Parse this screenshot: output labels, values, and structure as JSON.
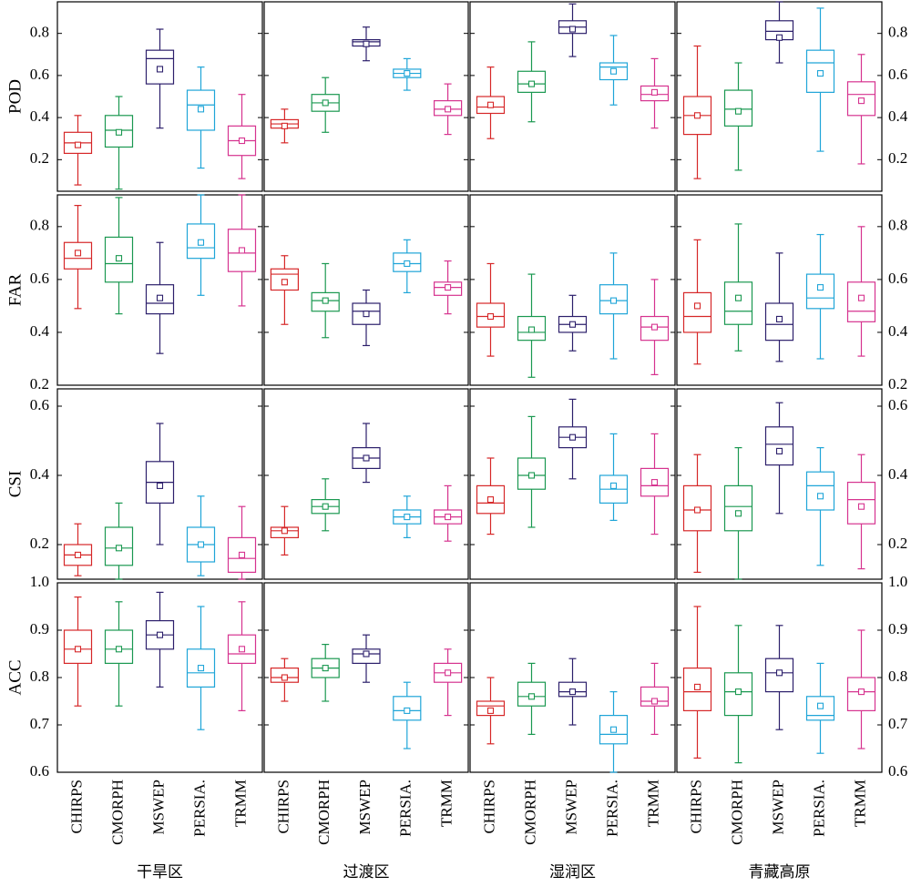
{
  "chart_data": {
    "type": "box",
    "categories": [
      "CHIRPS",
      "CMORPH",
      "MSWEP",
      "PERSIA.",
      "TRMM"
    ],
    "category_colors": [
      "#d62728",
      "#1a9850",
      "#2c1f6b",
      "#1fa5d8",
      "#d6338f"
    ],
    "regions": [
      "干旱区",
      "过渡区",
      "湿润区",
      "青藏高原"
    ],
    "metrics": [
      {
        "name": "POD",
        "ylim": [
          0.05,
          0.95
        ],
        "ticks": [
          "0.2",
          "0.4",
          "0.6",
          "0.8"
        ],
        "panels": [
          {
            "region": "干旱区",
            "boxes": [
              {
                "min": 0.08,
                "q1": 0.23,
                "median": 0.28,
                "q3": 0.33,
                "max": 0.41,
                "mean": 0.27
              },
              {
                "min": 0.06,
                "q1": 0.26,
                "median": 0.34,
                "q3": 0.41,
                "max": 0.5,
                "mean": 0.33
              },
              {
                "min": 0.35,
                "q1": 0.56,
                "median": 0.68,
                "q3": 0.72,
                "max": 0.82,
                "mean": 0.63
              },
              {
                "min": 0.16,
                "q1": 0.34,
                "median": 0.46,
                "q3": 0.53,
                "max": 0.64,
                "mean": 0.44
              },
              {
                "min": 0.11,
                "q1": 0.22,
                "median": 0.29,
                "q3": 0.36,
                "max": 0.51,
                "mean": 0.29
              }
            ]
          },
          {
            "region": "过渡区",
            "boxes": [
              {
                "min": 0.28,
                "q1": 0.35,
                "median": 0.37,
                "q3": 0.39,
                "max": 0.44,
                "mean": 0.36
              },
              {
                "min": 0.33,
                "q1": 0.43,
                "median": 0.47,
                "q3": 0.51,
                "max": 0.59,
                "mean": 0.47
              },
              {
                "min": 0.67,
                "q1": 0.74,
                "median": 0.76,
                "q3": 0.77,
                "max": 0.83,
                "mean": 0.75
              },
              {
                "min": 0.53,
                "q1": 0.59,
                "median": 0.61,
                "q3": 0.63,
                "max": 0.68,
                "mean": 0.61
              },
              {
                "min": 0.32,
                "q1": 0.41,
                "median": 0.44,
                "q3": 0.48,
                "max": 0.56,
                "mean": 0.44
              }
            ]
          },
          {
            "region": "湿润区",
            "boxes": [
              {
                "min": 0.3,
                "q1": 0.42,
                "median": 0.45,
                "q3": 0.5,
                "max": 0.64,
                "mean": 0.46
              },
              {
                "min": 0.38,
                "q1": 0.52,
                "median": 0.56,
                "q3": 0.62,
                "max": 0.76,
                "mean": 0.56
              },
              {
                "min": 0.69,
                "q1": 0.8,
                "median": 0.83,
                "q3": 0.86,
                "max": 0.94,
                "mean": 0.82
              },
              {
                "min": 0.46,
                "q1": 0.58,
                "median": 0.64,
                "q3": 0.66,
                "max": 0.79,
                "mean": 0.62
              },
              {
                "min": 0.35,
                "q1": 0.48,
                "median": 0.51,
                "q3": 0.55,
                "max": 0.68,
                "mean": 0.52
              }
            ]
          },
          {
            "region": "青藏高原",
            "boxes": [
              {
                "min": 0.11,
                "q1": 0.32,
                "median": 0.41,
                "q3": 0.5,
                "max": 0.74,
                "mean": 0.41
              },
              {
                "min": 0.15,
                "q1": 0.36,
                "median": 0.44,
                "q3": 0.53,
                "max": 0.66,
                "mean": 0.43
              },
              {
                "min": 0.66,
                "q1": 0.77,
                "median": 0.81,
                "q3": 0.86,
                "max": 0.95,
                "mean": 0.78
              },
              {
                "min": 0.24,
                "q1": 0.52,
                "median": 0.66,
                "q3": 0.72,
                "max": 0.92,
                "mean": 0.61
              },
              {
                "min": 0.18,
                "q1": 0.41,
                "median": 0.51,
                "q3": 0.57,
                "max": 0.7,
                "mean": 0.48
              }
            ]
          }
        ]
      },
      {
        "name": "FAR",
        "ylim": [
          0.2,
          0.92
        ],
        "ticks": [
          "0.2",
          "0.4",
          "0.6",
          "0.8"
        ],
        "panels": [
          {
            "region": "干旱区",
            "boxes": [
              {
                "min": 0.49,
                "q1": 0.64,
                "median": 0.68,
                "q3": 0.74,
                "max": 0.88,
                "mean": 0.7
              },
              {
                "min": 0.47,
                "q1": 0.59,
                "median": 0.66,
                "q3": 0.76,
                "max": 0.91,
                "mean": 0.68
              },
              {
                "min": 0.32,
                "q1": 0.47,
                "median": 0.51,
                "q3": 0.58,
                "max": 0.74,
                "mean": 0.53
              },
              {
                "min": 0.54,
                "q1": 0.68,
                "median": 0.72,
                "q3": 0.81,
                "max": 0.92,
                "mean": 0.74
              },
              {
                "min": 0.5,
                "q1": 0.63,
                "median": 0.7,
                "q3": 0.79,
                "max": 0.92,
                "mean": 0.71
              }
            ]
          },
          {
            "region": "过渡区",
            "boxes": [
              {
                "min": 0.43,
                "q1": 0.56,
                "median": 0.62,
                "q3": 0.64,
                "max": 0.69,
                "mean": 0.59
              },
              {
                "min": 0.38,
                "q1": 0.48,
                "median": 0.52,
                "q3": 0.55,
                "max": 0.66,
                "mean": 0.52
              },
              {
                "min": 0.35,
                "q1": 0.43,
                "median": 0.48,
                "q3": 0.51,
                "max": 0.56,
                "mean": 0.47
              },
              {
                "min": 0.55,
                "q1": 0.63,
                "median": 0.66,
                "q3": 0.7,
                "max": 0.75,
                "mean": 0.66
              },
              {
                "min": 0.47,
                "q1": 0.54,
                "median": 0.57,
                "q3": 0.59,
                "max": 0.67,
                "mean": 0.57
              }
            ]
          },
          {
            "region": "湿润区",
            "boxes": [
              {
                "min": 0.31,
                "q1": 0.42,
                "median": 0.46,
                "q3": 0.51,
                "max": 0.66,
                "mean": 0.46
              },
              {
                "min": 0.23,
                "q1": 0.37,
                "median": 0.4,
                "q3": 0.46,
                "max": 0.62,
                "mean": 0.41
              },
              {
                "min": 0.33,
                "q1": 0.4,
                "median": 0.43,
                "q3": 0.46,
                "max": 0.54,
                "mean": 0.43
              },
              {
                "min": 0.3,
                "q1": 0.47,
                "median": 0.52,
                "q3": 0.58,
                "max": 0.7,
                "mean": 0.52
              },
              {
                "min": 0.24,
                "q1": 0.37,
                "median": 0.42,
                "q3": 0.46,
                "max": 0.6,
                "mean": 0.42
              }
            ]
          },
          {
            "region": "青藏高原",
            "boxes": [
              {
                "min": 0.28,
                "q1": 0.4,
                "median": 0.46,
                "q3": 0.55,
                "max": 0.75,
                "mean": 0.5
              },
              {
                "min": 0.33,
                "q1": 0.43,
                "median": 0.48,
                "q3": 0.59,
                "max": 0.81,
                "mean": 0.53
              },
              {
                "min": 0.29,
                "q1": 0.37,
                "median": 0.43,
                "q3": 0.51,
                "max": 0.7,
                "mean": 0.45
              },
              {
                "min": 0.3,
                "q1": 0.49,
                "median": 0.53,
                "q3": 0.62,
                "max": 0.77,
                "mean": 0.57
              },
              {
                "min": 0.31,
                "q1": 0.44,
                "median": 0.48,
                "q3": 0.59,
                "max": 0.8,
                "mean": 0.53
              }
            ]
          }
        ]
      },
      {
        "name": "CSI",
        "ylim": [
          0.1,
          0.65
        ],
        "ticks": [
          "0.2",
          "0.4",
          "0.6"
        ],
        "panels": [
          {
            "region": "干旱区",
            "boxes": [
              {
                "min": 0.11,
                "q1": 0.14,
                "median": 0.17,
                "q3": 0.2,
                "max": 0.26,
                "mean": 0.17
              },
              {
                "min": 0.1,
                "q1": 0.14,
                "median": 0.19,
                "q3": 0.25,
                "max": 0.32,
                "mean": 0.19
              },
              {
                "min": 0.2,
                "q1": 0.32,
                "median": 0.38,
                "q3": 0.44,
                "max": 0.55,
                "mean": 0.37
              },
              {
                "min": 0.11,
                "q1": 0.15,
                "median": 0.2,
                "q3": 0.25,
                "max": 0.34,
                "mean": 0.2
              },
              {
                "min": 0.1,
                "q1": 0.12,
                "median": 0.16,
                "q3": 0.22,
                "max": 0.31,
                "mean": 0.17
              }
            ]
          },
          {
            "region": "过渡区",
            "boxes": [
              {
                "min": 0.17,
                "q1": 0.22,
                "median": 0.24,
                "q3": 0.25,
                "max": 0.31,
                "mean": 0.24
              },
              {
                "min": 0.24,
                "q1": 0.29,
                "median": 0.31,
                "q3": 0.33,
                "max": 0.39,
                "mean": 0.31
              },
              {
                "min": 0.38,
                "q1": 0.42,
                "median": 0.45,
                "q3": 0.48,
                "max": 0.55,
                "mean": 0.45
              },
              {
                "min": 0.22,
                "q1": 0.26,
                "median": 0.28,
                "q3": 0.3,
                "max": 0.34,
                "mean": 0.28
              },
              {
                "min": 0.21,
                "q1": 0.26,
                "median": 0.28,
                "q3": 0.3,
                "max": 0.37,
                "mean": 0.28
              }
            ]
          },
          {
            "region": "湿润区",
            "boxes": [
              {
                "min": 0.23,
                "q1": 0.29,
                "median": 0.32,
                "q3": 0.37,
                "max": 0.45,
                "mean": 0.33
              },
              {
                "min": 0.25,
                "q1": 0.36,
                "median": 0.4,
                "q3": 0.45,
                "max": 0.57,
                "mean": 0.4
              },
              {
                "min": 0.39,
                "q1": 0.48,
                "median": 0.51,
                "q3": 0.54,
                "max": 0.62,
                "mean": 0.51
              },
              {
                "min": 0.27,
                "q1": 0.32,
                "median": 0.36,
                "q3": 0.4,
                "max": 0.52,
                "mean": 0.37
              },
              {
                "min": 0.23,
                "q1": 0.34,
                "median": 0.37,
                "q3": 0.42,
                "max": 0.52,
                "mean": 0.38
              }
            ]
          },
          {
            "region": "青藏高原",
            "boxes": [
              {
                "min": 0.12,
                "q1": 0.24,
                "median": 0.3,
                "q3": 0.37,
                "max": 0.46,
                "mean": 0.3
              },
              {
                "min": 0.1,
                "q1": 0.24,
                "median": 0.31,
                "q3": 0.37,
                "max": 0.48,
                "mean": 0.29
              },
              {
                "min": 0.29,
                "q1": 0.43,
                "median": 0.49,
                "q3": 0.54,
                "max": 0.61,
                "mean": 0.47
              },
              {
                "min": 0.14,
                "q1": 0.3,
                "median": 0.37,
                "q3": 0.41,
                "max": 0.48,
                "mean": 0.34
              },
              {
                "min": 0.13,
                "q1": 0.26,
                "median": 0.33,
                "q3": 0.38,
                "max": 0.46,
                "mean": 0.31
              }
            ]
          }
        ]
      },
      {
        "name": "ACC",
        "ylim": [
          0.6,
          1.0
        ],
        "ticks": [
          "0.6",
          "0.7",
          "0.8",
          "0.9",
          "1.0"
        ],
        "panels": [
          {
            "region": "干旱区",
            "boxes": [
              {
                "min": 0.74,
                "q1": 0.83,
                "median": 0.86,
                "q3": 0.9,
                "max": 0.97,
                "mean": 0.86
              },
              {
                "min": 0.74,
                "q1": 0.83,
                "median": 0.86,
                "q3": 0.9,
                "max": 0.96,
                "mean": 0.86
              },
              {
                "min": 0.78,
                "q1": 0.86,
                "median": 0.89,
                "q3": 0.92,
                "max": 0.98,
                "mean": 0.89
              },
              {
                "min": 0.69,
                "q1": 0.78,
                "median": 0.81,
                "q3": 0.86,
                "max": 0.95,
                "mean": 0.82
              },
              {
                "min": 0.73,
                "q1": 0.83,
                "median": 0.85,
                "q3": 0.89,
                "max": 0.96,
                "mean": 0.86
              }
            ]
          },
          {
            "region": "过渡区",
            "boxes": [
              {
                "min": 0.75,
                "q1": 0.79,
                "median": 0.8,
                "q3": 0.82,
                "max": 0.84,
                "mean": 0.8
              },
              {
                "min": 0.75,
                "q1": 0.8,
                "median": 0.82,
                "q3": 0.84,
                "max": 0.87,
                "mean": 0.82
              },
              {
                "min": 0.79,
                "q1": 0.83,
                "median": 0.85,
                "q3": 0.86,
                "max": 0.89,
                "mean": 0.85
              },
              {
                "min": 0.65,
                "q1": 0.71,
                "median": 0.73,
                "q3": 0.76,
                "max": 0.79,
                "mean": 0.73
              },
              {
                "min": 0.72,
                "q1": 0.79,
                "median": 0.81,
                "q3": 0.83,
                "max": 0.86,
                "mean": 0.81
              }
            ]
          },
          {
            "region": "湿润区",
            "boxes": [
              {
                "min": 0.66,
                "q1": 0.72,
                "median": 0.74,
                "q3": 0.75,
                "max": 0.8,
                "mean": 0.73
              },
              {
                "min": 0.68,
                "q1": 0.74,
                "median": 0.76,
                "q3": 0.79,
                "max": 0.83,
                "mean": 0.76
              },
              {
                "min": 0.7,
                "q1": 0.76,
                "median": 0.77,
                "q3": 0.79,
                "max": 0.84,
                "mean": 0.77
              },
              {
                "min": 0.6,
                "q1": 0.66,
                "median": 0.68,
                "q3": 0.72,
                "max": 0.77,
                "mean": 0.69
              },
              {
                "min": 0.68,
                "q1": 0.74,
                "median": 0.75,
                "q3": 0.78,
                "max": 0.83,
                "mean": 0.75
              }
            ]
          },
          {
            "region": "青藏高原",
            "boxes": [
              {
                "min": 0.63,
                "q1": 0.73,
                "median": 0.77,
                "q3": 0.82,
                "max": 0.95,
                "mean": 0.78
              },
              {
                "min": 0.62,
                "q1": 0.72,
                "median": 0.77,
                "q3": 0.81,
                "max": 0.91,
                "mean": 0.77
              },
              {
                "min": 0.69,
                "q1": 0.77,
                "median": 0.81,
                "q3": 0.84,
                "max": 0.91,
                "mean": 0.81
              },
              {
                "min": 0.64,
                "q1": 0.71,
                "median": 0.72,
                "q3": 0.76,
                "max": 0.83,
                "mean": 0.74
              },
              {
                "min": 0.65,
                "q1": 0.73,
                "median": 0.77,
                "q3": 0.8,
                "max": 0.9,
                "mean": 0.77
              }
            ]
          }
        ]
      }
    ]
  }
}
